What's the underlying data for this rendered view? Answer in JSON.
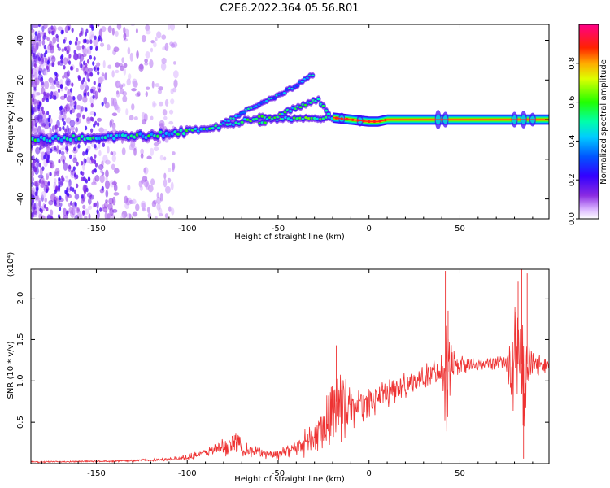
{
  "title": "C2E6.2022.364.05.56.R01",
  "colors": {
    "snr_line": "#ee3333",
    "frame": "#000000",
    "ridge_line": "#ff2222"
  },
  "chart_data": [
    {
      "type": "heatmap",
      "name": "spectrogram",
      "xlabel": "Height of straight line (km)",
      "ylabel": "Frequency (Hz)",
      "xlim": [
        -186,
        99
      ],
      "ylim": [
        -50,
        48
      ],
      "xticks": [
        -150,
        -100,
        -50,
        0,
        50
      ],
      "xtick_labels": [
        "-150",
        "-100",
        "-50",
        "0",
        "50"
      ],
      "yticks": [
        -40,
        -20,
        0,
        20,
        40
      ],
      "ytick_labels": [
        "-40",
        "-20",
        "0",
        "20",
        "40"
      ],
      "colorbar": {
        "label": "Normalized spectral amplitude",
        "range": [
          0,
          1
        ],
        "ticks": [
          0,
          0.2,
          0.4,
          0.6,
          0.8
        ],
        "tick_labels": [
          "0.0",
          "0.2",
          "0.4",
          "0.6",
          "0.8"
        ],
        "colormap": "rainbow (white→violet→blue→cyan→green→yellow→red→magenta)"
      },
      "ridge_main": [
        {
          "x": -185,
          "y": -10
        },
        {
          "x": -150,
          "y": -9
        },
        {
          "x": -120,
          "y": -8
        },
        {
          "x": -100,
          "y": -6
        },
        {
          "x": -80,
          "y": -3
        },
        {
          "x": -60,
          "y": 1
        },
        {
          "x": -40,
          "y": 0
        },
        {
          "x": -25,
          "y": 1
        },
        {
          "x": -20,
          "y": 1
        },
        {
          "x": -10,
          "y": 0
        },
        {
          "x": 0,
          "y": -1
        },
        {
          "x": 5,
          "y": -1
        },
        {
          "x": 10,
          "y": 0
        },
        {
          "x": 99,
          "y": 0
        }
      ],
      "ridge_upper": [
        {
          "x": -80,
          "y": -2
        },
        {
          "x": -65,
          "y": 6
        },
        {
          "x": -50,
          "y": 12
        },
        {
          "x": -40,
          "y": 17
        },
        {
          "x": -30,
          "y": 23
        }
      ],
      "ridge_mid": [
        {
          "x": -60,
          "y": -2
        },
        {
          "x": -45,
          "y": 4
        },
        {
          "x": -35,
          "y": 8
        },
        {
          "x": -28,
          "y": 10
        },
        {
          "x": -22,
          "y": 3
        }
      ]
    },
    {
      "type": "line",
      "name": "snr",
      "xlabel": "Height of straight line (km)",
      "ylabel": "SNR (10 * v/v)",
      "y_multiplier": "(x10⁴)",
      "xlim": [
        -186,
        99
      ],
      "ylim": [
        0,
        2.35
      ],
      "xticks": [
        -150,
        -100,
        -50,
        0,
        50
      ],
      "xtick_labels": [
        "-150",
        "-100",
        "-50",
        "0",
        "50"
      ],
      "yticks": [
        0.5,
        1.0,
        1.5,
        2.0
      ],
      "ytick_labels": [
        "0.5",
        "1.0",
        "1.5",
        "2.0"
      ],
      "series": [
        {
          "name": "SNR",
          "envelope": [
            {
              "x": -186,
              "mean": 0.02,
              "amp": 0.01
            },
            {
              "x": -140,
              "mean": 0.03,
              "amp": 0.01
            },
            {
              "x": -110,
              "mean": 0.05,
              "amp": 0.02
            },
            {
              "x": -100,
              "mean": 0.08,
              "amp": 0.04
            },
            {
              "x": -90,
              "mean": 0.13,
              "amp": 0.05
            },
            {
              "x": -80,
              "mean": 0.2,
              "amp": 0.12
            },
            {
              "x": -72,
              "mean": 0.25,
              "amp": 0.18
            },
            {
              "x": -65,
              "mean": 0.15,
              "amp": 0.08
            },
            {
              "x": -50,
              "mean": 0.1,
              "amp": 0.06
            },
            {
              "x": -40,
              "mean": 0.2,
              "amp": 0.12
            },
            {
              "x": -30,
              "mean": 0.3,
              "amp": 0.25
            },
            {
              "x": -20,
              "mean": 0.55,
              "amp": 0.45
            },
            {
              "x": -18,
              "mean": 0.75,
              "amp": 0.6
            },
            {
              "x": -10,
              "mean": 0.65,
              "amp": 0.25
            },
            {
              "x": 0,
              "mean": 0.75,
              "amp": 0.2
            },
            {
              "x": 15,
              "mean": 0.9,
              "amp": 0.18
            },
            {
              "x": 30,
              "mean": 1.05,
              "amp": 0.15
            },
            {
              "x": 40,
              "mean": 1.15,
              "amp": 0.2
            },
            {
              "x": 43,
              "mean": 1.1,
              "amp": 0.9
            },
            {
              "x": 47,
              "mean": 1.2,
              "amp": 0.15
            },
            {
              "x": 60,
              "mean": 1.2,
              "amp": 0.08
            },
            {
              "x": 75,
              "mean": 1.22,
              "amp": 0.08
            },
            {
              "x": 80,
              "mean": 1.2,
              "amp": 0.7
            },
            {
              "x": 85,
              "mean": 1.2,
              "amp": 0.9
            },
            {
              "x": 90,
              "mean": 1.2,
              "amp": 0.15
            },
            {
              "x": 99,
              "mean": 1.2,
              "amp": 0.1
            }
          ],
          "spikes": [
            {
              "x": -18,
              "y": 1.43
            },
            {
              "x": 42,
              "y": 2.33
            },
            {
              "x": 43.5,
              "y": 1.85
            },
            {
              "x": 82,
              "y": 2.2
            },
            {
              "x": 84,
              "y": 2.35
            },
            {
              "x": 85,
              "y": 0.06
            },
            {
              "x": 87,
              "y": 2.3
            }
          ]
        }
      ]
    }
  ]
}
